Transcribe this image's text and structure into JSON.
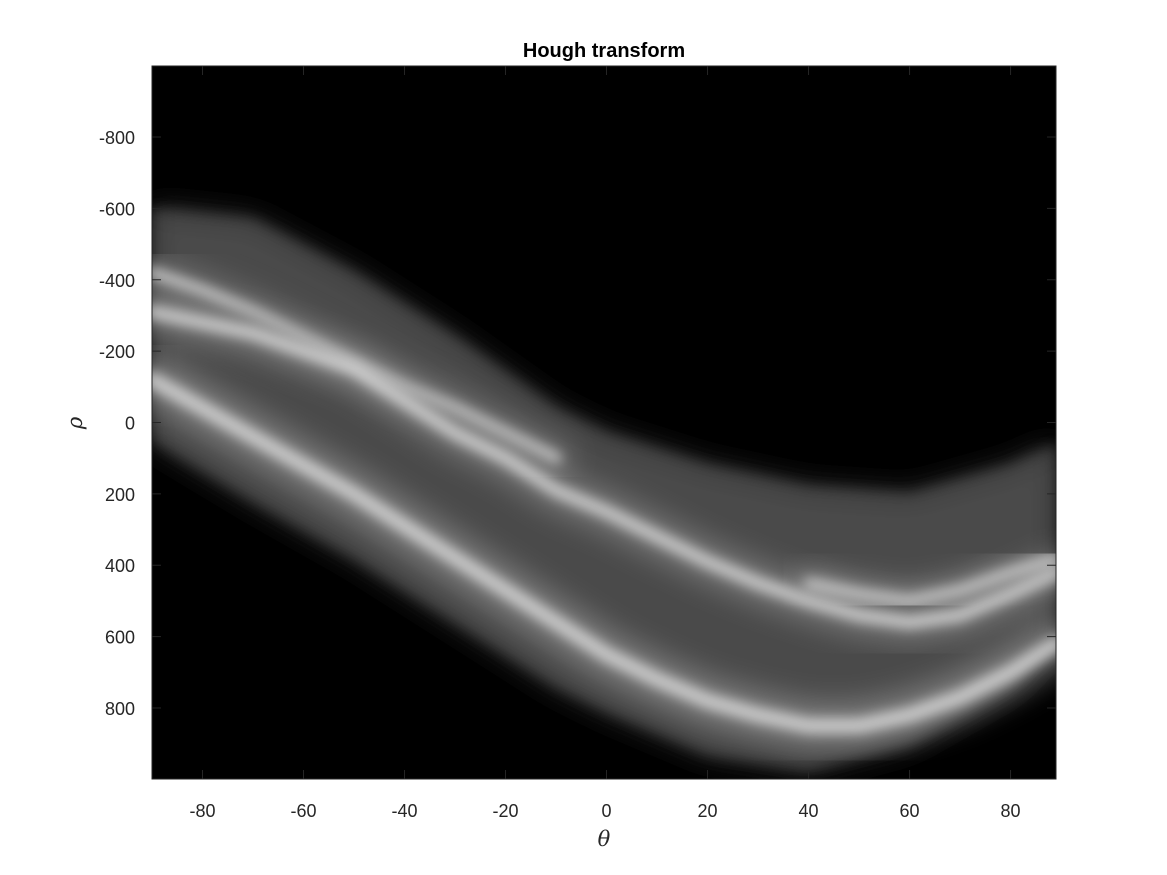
{
  "chart_data": {
    "type": "heatmap",
    "title": "Hough transform",
    "xlabel": "θ",
    "ylabel": "ρ",
    "xlim": [
      -90,
      89
    ],
    "ylim": [
      -999,
      999
    ],
    "y_direction": "reversed",
    "xticks": [
      -80,
      -60,
      -40,
      -20,
      0,
      20,
      40,
      60,
      80
    ],
    "yticks": [
      -800,
      -600,
      -400,
      -200,
      0,
      200,
      400,
      600,
      800
    ],
    "colormap": "gray",
    "background_color": "#000000",
    "grid": false,
    "dominant_bands": [
      {
        "theta_rho": [
          [
            -90,
            -420
          ],
          [
            -80,
            -370
          ],
          [
            -70,
            -310
          ],
          [
            -60,
            -240
          ],
          [
            -50,
            -170
          ],
          [
            -40,
            -100
          ],
          [
            -30,
            -40
          ],
          [
            -20,
            30
          ],
          [
            -10,
            100
          ]
        ]
      },
      {
        "theta_rho": [
          [
            -90,
            -310
          ],
          [
            -80,
            -280
          ],
          [
            -70,
            -250
          ],
          [
            -60,
            -200
          ],
          [
            -50,
            -150
          ],
          [
            -40,
            -60
          ],
          [
            -30,
            30
          ],
          [
            -20,
            100
          ],
          [
            -10,
            190
          ],
          [
            0,
            250
          ],
          [
            10,
            320
          ],
          [
            20,
            390
          ],
          [
            30,
            450
          ],
          [
            40,
            500
          ],
          [
            50,
            540
          ],
          [
            60,
            560
          ],
          [
            70,
            540
          ],
          [
            80,
            480
          ],
          [
            89,
            420
          ]
        ]
      },
      {
        "theta_rho": [
          [
            -90,
            -120
          ],
          [
            -80,
            -40
          ],
          [
            -70,
            40
          ],
          [
            -60,
            120
          ],
          [
            -50,
            200
          ],
          [
            -40,
            290
          ],
          [
            -30,
            380
          ],
          [
            -20,
            470
          ],
          [
            -10,
            560
          ],
          [
            0,
            650
          ],
          [
            10,
            720
          ],
          [
            20,
            780
          ],
          [
            30,
            820
          ],
          [
            40,
            850
          ],
          [
            50,
            850
          ],
          [
            60,
            820
          ],
          [
            70,
            770
          ],
          [
            80,
            700
          ],
          [
            89,
            620
          ]
        ]
      },
      {
        "theta_rho": [
          [
            40,
            450
          ],
          [
            50,
            480
          ],
          [
            60,
            500
          ],
          [
            70,
            470
          ],
          [
            80,
            420
          ],
          [
            89,
            380
          ]
        ]
      }
    ],
    "nonzero_envelope": {
      "upper": [
        [
          -90,
          -600
        ],
        [
          -70,
          -570
        ],
        [
          -50,
          -420
        ],
        [
          -30,
          -240
        ],
        [
          -10,
          -40
        ],
        [
          0,
          30
        ],
        [
          20,
          120
        ],
        [
          40,
          180
        ],
        [
          60,
          200
        ],
        [
          80,
          120
        ],
        [
          89,
          60
        ]
      ],
      "lower": [
        [
          -90,
          50
        ],
        [
          -70,
          220
        ],
        [
          -50,
          380
        ],
        [
          -30,
          560
        ],
        [
          -10,
          740
        ],
        [
          0,
          810
        ],
        [
          20,
          930
        ],
        [
          40,
          975
        ],
        [
          60,
          900
        ],
        [
          80,
          740
        ],
        [
          89,
          610
        ]
      ]
    }
  }
}
